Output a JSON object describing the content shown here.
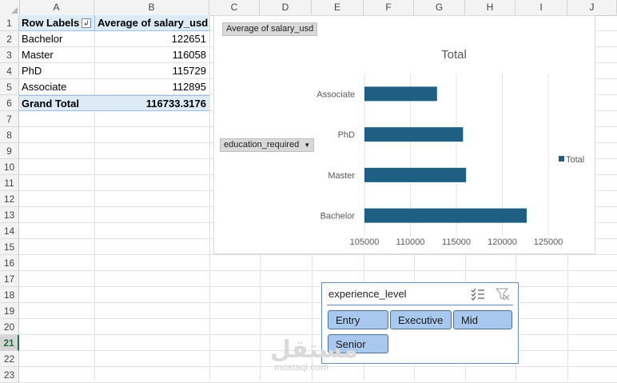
{
  "columns": [
    "A",
    "B",
    "C",
    "D",
    "E",
    "F",
    "G",
    "H",
    "I",
    "J"
  ],
  "rows": [
    "1",
    "2",
    "3",
    "4",
    "5",
    "6",
    "7",
    "8",
    "9",
    "10",
    "11",
    "12",
    "13",
    "14",
    "15",
    "16",
    "17",
    "18",
    "19",
    "20",
    "21",
    "22",
    "23"
  ],
  "active_row": "21",
  "pivot": {
    "header_labels": "Row Labels",
    "header_value": "Average of salary_usd",
    "rows": [
      {
        "label": "Bachelor",
        "value": "122651"
      },
      {
        "label": "Master",
        "value": "116058"
      },
      {
        "label": "PhD",
        "value": "115729"
      },
      {
        "label": "Associate",
        "value": "112895"
      }
    ],
    "total_label": "Grand Total",
    "total_value": "116733.3176"
  },
  "chart": {
    "value_field_button": "Average of salary_usd",
    "axis_field_button": "education_required",
    "bar_color": "#1f5f84"
  },
  "chart_data": {
    "type": "bar",
    "orientation": "horizontal",
    "title": "Total",
    "categories": [
      "Associate",
      "PhD",
      "Master",
      "Bachelor"
    ],
    "series": [
      {
        "name": "Total",
        "values": [
          112895,
          115729,
          116058,
          122651
        ]
      }
    ],
    "xlim": [
      105000,
      125000
    ],
    "xticks": [
      105000,
      110000,
      115000,
      120000,
      125000
    ],
    "grid": true,
    "legend": "right"
  },
  "slicer": {
    "title": "experience_level",
    "multi_select_icon": "multi-select-icon",
    "clear_filter_icon": "clear-filter-icon",
    "items": [
      "Entry",
      "Executive",
      "Mid",
      "Senior"
    ]
  },
  "watermark": {
    "logo": "مستقل",
    "text": "mostaql.com"
  }
}
